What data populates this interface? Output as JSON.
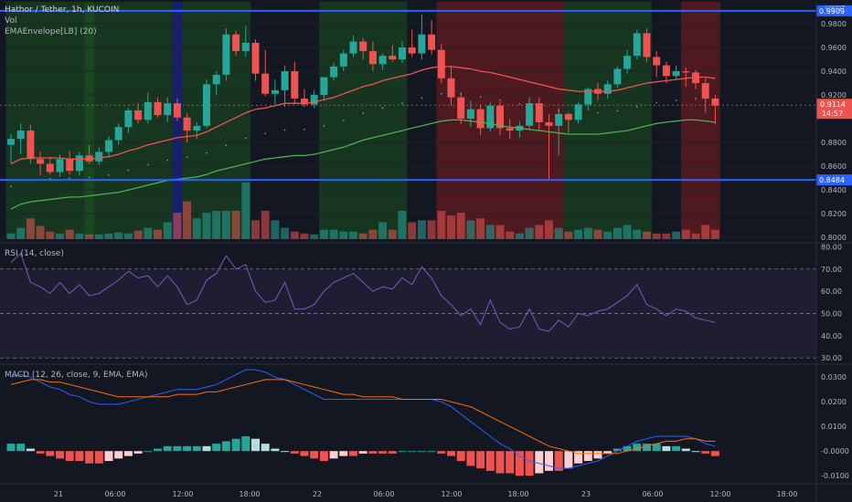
{
  "header": {
    "title": "Hathor / Tether, 1h, KUCOIN",
    "vol_label": "Vol",
    "ema_label": "EMAEnvelope[LB] (20)",
    "currency": "USDT"
  },
  "price_axis": {
    "ticks": [
      "0.9800",
      "0.9600",
      "0.9400",
      "0.9200",
      "0.8800",
      "0.8600",
      "0.8400",
      "0.8200",
      "0.8000"
    ],
    "tick_values": [
      0.98,
      0.96,
      0.94,
      0.92,
      0.88,
      0.86,
      0.84,
      0.82,
      0.8
    ],
    "range": [
      0.7985,
      0.9985
    ]
  },
  "levels": [
    {
      "value": 0.9909,
      "label": "0.9909"
    },
    {
      "value": 0.8484,
      "label": "0.8484"
    }
  ],
  "current": {
    "price": "0.9114",
    "value": 0.9114,
    "countdown": "14:57"
  },
  "time_axis": [
    "21",
    "06:00",
    "12:00",
    "18:00",
    "22",
    "06:00",
    "12:00",
    "18:00",
    "23",
    "06:00",
    "12:00",
    "18:00"
  ],
  "rsi": {
    "title": "RSI (14, close)",
    "ticks": [
      "80.00",
      "70.00",
      "60.00",
      "50.00",
      "40.00",
      "30.00"
    ],
    "tick_values": [
      80,
      70,
      60,
      50,
      40,
      30
    ],
    "bands": [
      70,
      50,
      30
    ],
    "range": [
      28,
      81
    ]
  },
  "macd": {
    "title": "MACD (12, 26, close, 9, EMA, EMA)",
    "ticks": [
      "0.0300",
      "0.0200",
      "0.0100",
      "-0.0000",
      "-0.0100"
    ],
    "tick_values": [
      0.03,
      0.02,
      0.01,
      0.0,
      -0.01
    ],
    "range": [
      -0.0125,
      0.0345
    ]
  },
  "colors": {
    "up": "#26a69a",
    "down": "#ef5350",
    "ema_mid": "#ef5350",
    "ema_low": "#4caf50",
    "rsi_line": "#7e57c2",
    "macd_line": "#2962ff",
    "signal_line": "#ff6d00",
    "level": "#2962ff",
    "green_zone": "#1b5e20",
    "red_zone": "#7f1d1d",
    "blue_zone": "#1a237e"
  },
  "chart_data": {
    "type": "candlestick",
    "title": "Hathor / Tether, 1h, KUCOIN",
    "candles": [
      {
        "o": 0.878,
        "h": 0.887,
        "l": 0.862,
        "c": 0.883,
        "v": 6
      },
      {
        "o": 0.883,
        "h": 0.896,
        "l": 0.87,
        "c": 0.89,
        "v": 12
      },
      {
        "o": 0.89,
        "h": 0.895,
        "l": 0.862,
        "c": 0.866,
        "v": 22
      },
      {
        "o": 0.866,
        "h": 0.872,
        "l": 0.852,
        "c": 0.862,
        "v": 14
      },
      {
        "o": 0.862,
        "h": 0.868,
        "l": 0.853,
        "c": 0.855,
        "v": 8
      },
      {
        "o": 0.855,
        "h": 0.87,
        "l": 0.851,
        "c": 0.866,
        "v": 6
      },
      {
        "o": 0.866,
        "h": 0.873,
        "l": 0.853,
        "c": 0.856,
        "v": 10
      },
      {
        "o": 0.856,
        "h": 0.872,
        "l": 0.852,
        "c": 0.869,
        "v": 6
      },
      {
        "o": 0.869,
        "h": 0.878,
        "l": 0.862,
        "c": 0.864,
        "v": 5
      },
      {
        "o": 0.864,
        "h": 0.876,
        "l": 0.861,
        "c": 0.872,
        "v": 5
      },
      {
        "o": 0.872,
        "h": 0.885,
        "l": 0.868,
        "c": 0.882,
        "v": 6
      },
      {
        "o": 0.882,
        "h": 0.896,
        "l": 0.878,
        "c": 0.893,
        "v": 7
      },
      {
        "o": 0.893,
        "h": 0.909,
        "l": 0.888,
        "c": 0.907,
        "v": 6
      },
      {
        "o": 0.907,
        "h": 0.913,
        "l": 0.896,
        "c": 0.899,
        "v": 9
      },
      {
        "o": 0.899,
        "h": 0.922,
        "l": 0.896,
        "c": 0.914,
        "v": 12
      },
      {
        "o": 0.914,
        "h": 0.918,
        "l": 0.901,
        "c": 0.903,
        "v": 10
      },
      {
        "o": 0.903,
        "h": 0.918,
        "l": 0.897,
        "c": 0.913,
        "v": 18
      },
      {
        "o": 0.913,
        "h": 0.917,
        "l": 0.898,
        "c": 0.901,
        "v": 28
      },
      {
        "o": 0.901,
        "h": 0.905,
        "l": 0.88,
        "c": 0.89,
        "v": 40
      },
      {
        "o": 0.89,
        "h": 0.897,
        "l": 0.883,
        "c": 0.894,
        "v": 22
      },
      {
        "o": 0.894,
        "h": 0.933,
        "l": 0.892,
        "c": 0.929,
        "v": 28
      },
      {
        "o": 0.929,
        "h": 0.94,
        "l": 0.92,
        "c": 0.937,
        "v": 30
      },
      {
        "o": 0.937,
        "h": 0.976,
        "l": 0.932,
        "c": 0.971,
        "v": 30
      },
      {
        "o": 0.971,
        "h": 0.974,
        "l": 0.953,
        "c": 0.957,
        "v": 30
      },
      {
        "o": 0.957,
        "h": 0.978,
        "l": 0.952,
        "c": 0.964,
        "v": 60
      },
      {
        "o": 0.964,
        "h": 0.967,
        "l": 0.932,
        "c": 0.938,
        "v": 20
      },
      {
        "o": 0.938,
        "h": 0.958,
        "l": 0.919,
        "c": 0.921,
        "v": 30
      },
      {
        "o": 0.921,
        "h": 0.933,
        "l": 0.912,
        "c": 0.924,
        "v": 20
      },
      {
        "o": 0.924,
        "h": 0.945,
        "l": 0.91,
        "c": 0.94,
        "v": 12
      },
      {
        "o": 0.94,
        "h": 0.948,
        "l": 0.912,
        "c": 0.917,
        "v": 8
      },
      {
        "o": 0.917,
        "h": 0.925,
        "l": 0.91,
        "c": 0.912,
        "v": 6
      },
      {
        "o": 0.912,
        "h": 0.924,
        "l": 0.909,
        "c": 0.92,
        "v": 5
      },
      {
        "o": 0.92,
        "h": 0.935,
        "l": 0.915,
        "c": 0.935,
        "v": 10
      },
      {
        "o": 0.935,
        "h": 0.947,
        "l": 0.932,
        "c": 0.944,
        "v": 10
      },
      {
        "o": 0.944,
        "h": 0.958,
        "l": 0.94,
        "c": 0.955,
        "v": 8
      },
      {
        "o": 0.955,
        "h": 0.97,
        "l": 0.952,
        "c": 0.965,
        "v": 8
      },
      {
        "o": 0.965,
        "h": 0.968,
        "l": 0.95,
        "c": 0.957,
        "v": 6
      },
      {
        "o": 0.957,
        "h": 0.965,
        "l": 0.94,
        "c": 0.946,
        "v": 10
      },
      {
        "o": 0.946,
        "h": 0.955,
        "l": 0.941,
        "c": 0.953,
        "v": 18
      },
      {
        "o": 0.953,
        "h": 0.962,
        "l": 0.948,
        "c": 0.95,
        "v": 10
      },
      {
        "o": 0.95,
        "h": 0.965,
        "l": 0.947,
        "c": 0.96,
        "v": 30
      },
      {
        "o": 0.96,
        "h": 0.975,
        "l": 0.952,
        "c": 0.955,
        "v": 18
      },
      {
        "o": 0.955,
        "h": 0.988,
        "l": 0.95,
        "c": 0.971,
        "v": 20
      },
      {
        "o": 0.971,
        "h": 0.983,
        "l": 0.954,
        "c": 0.958,
        "v": 20
      },
      {
        "o": 0.958,
        "h": 0.963,
        "l": 0.93,
        "c": 0.934,
        "v": 30
      },
      {
        "o": 0.934,
        "h": 0.945,
        "l": 0.911,
        "c": 0.918,
        "v": 25
      },
      {
        "o": 0.918,
        "h": 0.922,
        "l": 0.895,
        "c": 0.9,
        "v": 28
      },
      {
        "o": 0.9,
        "h": 0.915,
        "l": 0.893,
        "c": 0.908,
        "v": 20
      },
      {
        "o": 0.908,
        "h": 0.912,
        "l": 0.886,
        "c": 0.892,
        "v": 22
      },
      {
        "o": 0.892,
        "h": 0.914,
        "l": 0.889,
        "c": 0.911,
        "v": 15
      },
      {
        "o": 0.911,
        "h": 0.914,
        "l": 0.886,
        "c": 0.892,
        "v": 15
      },
      {
        "o": 0.892,
        "h": 0.9,
        "l": 0.883,
        "c": 0.89,
        "v": 8
      },
      {
        "o": 0.89,
        "h": 0.898,
        "l": 0.884,
        "c": 0.894,
        "v": 6
      },
      {
        "o": 0.894,
        "h": 0.918,
        "l": 0.891,
        "c": 0.913,
        "v": 12
      },
      {
        "o": 0.913,
        "h": 0.918,
        "l": 0.89,
        "c": 0.897,
        "v": 15
      },
      {
        "o": 0.897,
        "h": 0.904,
        "l": 0.849,
        "c": 0.894,
        "v": 20
      },
      {
        "o": 0.894,
        "h": 0.909,
        "l": 0.869,
        "c": 0.904,
        "v": 12
      },
      {
        "o": 0.904,
        "h": 0.905,
        "l": 0.888,
        "c": 0.899,
        "v": 8
      },
      {
        "o": 0.899,
        "h": 0.914,
        "l": 0.896,
        "c": 0.912,
        "v": 10
      },
      {
        "o": 0.912,
        "h": 0.926,
        "l": 0.907,
        "c": 0.925,
        "v": 12
      },
      {
        "o": 0.925,
        "h": 0.93,
        "l": 0.915,
        "c": 0.921,
        "v": 10
      },
      {
        "o": 0.921,
        "h": 0.932,
        "l": 0.917,
        "c": 0.929,
        "v": 8
      },
      {
        "o": 0.929,
        "h": 0.944,
        "l": 0.926,
        "c": 0.942,
        "v": 12
      },
      {
        "o": 0.942,
        "h": 0.958,
        "l": 0.938,
        "c": 0.953,
        "v": 15
      },
      {
        "o": 0.953,
        "h": 0.975,
        "l": 0.95,
        "c": 0.972,
        "v": 10
      },
      {
        "o": 0.972,
        "h": 0.976,
        "l": 0.948,
        "c": 0.952,
        "v": 8
      },
      {
        "o": 0.952,
        "h": 0.957,
        "l": 0.935,
        "c": 0.945,
        "v": 6
      },
      {
        "o": 0.945,
        "h": 0.948,
        "l": 0.93,
        "c": 0.936,
        "v": 6
      },
      {
        "o": 0.936,
        "h": 0.945,
        "l": 0.933,
        "c": 0.94,
        "v": 8
      },
      {
        "o": 0.94,
        "h": 0.943,
        "l": 0.927,
        "c": 0.939,
        "v": 10
      },
      {
        "o": 0.939,
        "h": 0.941,
        "l": 0.925,
        "c": 0.93,
        "v": 6
      },
      {
        "o": 0.93,
        "h": 0.934,
        "l": 0.905,
        "c": 0.917,
        "v": 15
      },
      {
        "o": 0.917,
        "h": 0.92,
        "l": 0.895,
        "c": 0.911,
        "v": 10
      }
    ],
    "ema_mid": [
      0.862,
      0.866,
      0.867,
      0.867,
      0.867,
      0.867,
      0.866,
      0.866,
      0.866,
      0.867,
      0.868,
      0.87,
      0.873,
      0.875,
      0.878,
      0.88,
      0.882,
      0.884,
      0.885,
      0.886,
      0.889,
      0.893,
      0.897,
      0.901,
      0.905,
      0.908,
      0.909,
      0.911,
      0.913,
      0.913,
      0.913,
      0.914,
      0.916,
      0.918,
      0.921,
      0.924,
      0.927,
      0.929,
      0.932,
      0.934,
      0.936,
      0.938,
      0.941,
      0.943,
      0.944,
      0.944,
      0.943,
      0.942,
      0.94,
      0.939,
      0.937,
      0.935,
      0.933,
      0.931,
      0.929,
      0.927,
      0.925,
      0.924,
      0.923,
      0.923,
      0.923,
      0.923,
      0.924,
      0.926,
      0.928,
      0.93,
      0.931,
      0.932,
      0.933,
      0.934,
      0.935,
      0.935,
      0.934
    ],
    "ema_low": [
      0.824,
      0.828,
      0.83,
      0.831,
      0.832,
      0.833,
      0.834,
      0.834,
      0.835,
      0.836,
      0.837,
      0.838,
      0.84,
      0.842,
      0.844,
      0.846,
      0.848,
      0.849,
      0.85,
      0.851,
      0.853,
      0.856,
      0.858,
      0.86,
      0.862,
      0.864,
      0.866,
      0.867,
      0.868,
      0.869,
      0.869,
      0.87,
      0.872,
      0.874,
      0.876,
      0.879,
      0.882,
      0.884,
      0.886,
      0.888,
      0.89,
      0.892,
      0.894,
      0.896,
      0.898,
      0.899,
      0.899,
      0.898,
      0.897,
      0.896,
      0.894,
      0.893,
      0.892,
      0.891,
      0.89,
      0.889,
      0.888,
      0.887,
      0.887,
      0.887,
      0.887,
      0.888,
      0.889,
      0.89,
      0.892,
      0.894,
      0.896,
      0.897,
      0.898,
      0.899,
      0.899,
      0.898,
      0.897
    ],
    "rsi": [
      73,
      77,
      64,
      62,
      59,
      64,
      59,
      63,
      58,
      59,
      62,
      65,
      69,
      66,
      67,
      62,
      67,
      62,
      54,
      56,
      65,
      68,
      76,
      70,
      72,
      60,
      55,
      56,
      64,
      52,
      52,
      54,
      60,
      64,
      66,
      68,
      64,
      60,
      62,
      61,
      66,
      63,
      71,
      66,
      58,
      54,
      49,
      52,
      45,
      56,
      46,
      43,
      44,
      52,
      43,
      42,
      47,
      44,
      50,
      49,
      51,
      52,
      55,
      58,
      63,
      54,
      52,
      49,
      52,
      51,
      48,
      47,
      46
    ],
    "macd_line": [
      0.03,
      0.031,
      0.03,
      0.028,
      0.026,
      0.025,
      0.023,
      0.022,
      0.02,
      0.019,
      0.019,
      0.019,
      0.02,
      0.021,
      0.022,
      0.023,
      0.024,
      0.025,
      0.025,
      0.025,
      0.026,
      0.027,
      0.029,
      0.031,
      0.033,
      0.033,
      0.032,
      0.03,
      0.029,
      0.027,
      0.025,
      0.023,
      0.021,
      0.021,
      0.021,
      0.021,
      0.021,
      0.021,
      0.021,
      0.021,
      0.021,
      0.021,
      0.021,
      0.021,
      0.02,
      0.018,
      0.015,
      0.012,
      0.009,
      0.006,
      0.003,
      0.001,
      -0.002,
      -0.004,
      -0.005,
      -0.006,
      -0.007,
      -0.007,
      -0.006,
      -0.005,
      -0.004,
      -0.002,
      0.0,
      0.002,
      0.004,
      0.005,
      0.006,
      0.006,
      0.006,
      0.006,
      0.005,
      0.003,
      0.002
    ],
    "signal_line": [
      0.027,
      0.028,
      0.029,
      0.029,
      0.028,
      0.028,
      0.027,
      0.026,
      0.025,
      0.024,
      0.023,
      0.022,
      0.022,
      0.022,
      0.022,
      0.022,
      0.022,
      0.023,
      0.023,
      0.023,
      0.024,
      0.024,
      0.025,
      0.026,
      0.027,
      0.028,
      0.029,
      0.029,
      0.029,
      0.028,
      0.027,
      0.026,
      0.025,
      0.024,
      0.023,
      0.023,
      0.022,
      0.022,
      0.022,
      0.022,
      0.021,
      0.021,
      0.021,
      0.021,
      0.021,
      0.02,
      0.019,
      0.018,
      0.016,
      0.014,
      0.012,
      0.01,
      0.008,
      0.006,
      0.004,
      0.002,
      0.001,
      0.0,
      -0.001,
      -0.001,
      -0.001,
      -0.001,
      -0.001,
      0.0,
      0.001,
      0.002,
      0.003,
      0.004,
      0.004,
      0.005,
      0.005,
      0.004,
      0.004
    ],
    "zones": [
      {
        "from": 0,
        "to": 8,
        "color": "green"
      },
      {
        "from": 17,
        "to": 17,
        "color": "blue"
      },
      {
        "from": 8,
        "to": 16,
        "color": "green"
      },
      {
        "from": 18,
        "to": 24,
        "color": "green"
      },
      {
        "from": 32,
        "to": 40,
        "color": "green"
      },
      {
        "from": 44,
        "to": 56,
        "color": "red"
      },
      {
        "from": 57,
        "to": 65,
        "color": "green"
      },
      {
        "from": 69,
        "to": 72,
        "color": "red"
      }
    ]
  }
}
